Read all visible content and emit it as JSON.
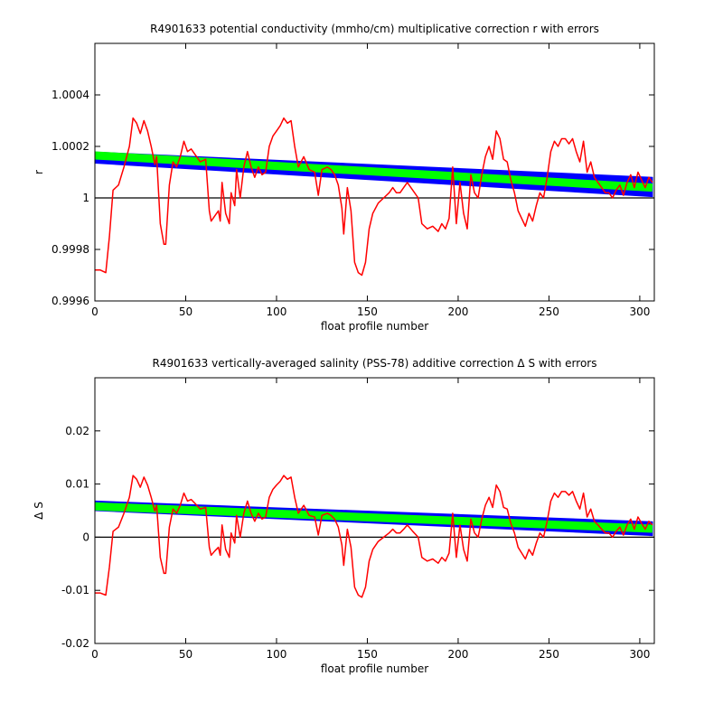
{
  "chart_data": [
    {
      "type": "line",
      "title": "R4901633 potential conductivity (mmho/cm) multiplicative correction r with errors",
      "xlabel": "float profile number",
      "ylabel": "r",
      "xlim": [
        0,
        308
      ],
      "xticks": [
        0,
        50,
        100,
        150,
        200,
        250,
        300
      ],
      "ylim": [
        0.9996,
        1.0006
      ],
      "yticks": [
        0.9996,
        0.9998,
        1,
        1.0002,
        1.0004
      ],
      "hline": 1,
      "hline_color": "#000000",
      "band": {
        "color": "#0000ff",
        "x": [
          0,
          307
        ],
        "upper": [
          1.000178,
          1.00008
        ],
        "lower": [
          1.000135,
          1.000005
        ]
      },
      "fit": {
        "color": "#00ff00",
        "x": [
          0,
          307
        ],
        "values": [
          1.000165,
          1.00004
        ]
      },
      "x": [
        0,
        3,
        6,
        8,
        10,
        13,
        16,
        19,
        21,
        23,
        25,
        27,
        29,
        31,
        33,
        34,
        36,
        38,
        39,
        41,
        43,
        45,
        47,
        49,
        51,
        53,
        55,
        58,
        61,
        63,
        64,
        66,
        68,
        69,
        70,
        72,
        74,
        75,
        77,
        78,
        80,
        82,
        84,
        86,
        88,
        90,
        92,
        94,
        96,
        98,
        100,
        102,
        104,
        106,
        108,
        110,
        112,
        115,
        118,
        121,
        123,
        125,
        128,
        130,
        132,
        134,
        136,
        137,
        139,
        141,
        143,
        145,
        147,
        149,
        151,
        153,
        156,
        159,
        162,
        164,
        166,
        168,
        170,
        172,
        175,
        178,
        180,
        183,
        186,
        189,
        191,
        193,
        195,
        197,
        199,
        201,
        203,
        205,
        207,
        209,
        211,
        213,
        215,
        217,
        219,
        221,
        223,
        225,
        227,
        229,
        231,
        233,
        235,
        237,
        239,
        241,
        243,
        245,
        247,
        249,
        251,
        253,
        255,
        257,
        259,
        261,
        263,
        265,
        267,
        269,
        271,
        273,
        275,
        277,
        279,
        281,
        283,
        285,
        287,
        289,
        291,
        293,
        295,
        297,
        299,
        301,
        303,
        305,
        307
      ],
      "series": [
        {
          "color": "#ff0000",
          "values": [
            0.99972,
            0.99972,
            0.99971,
            0.99985,
            1.00003,
            1.00005,
            1.00012,
            1.0002,
            1.00031,
            1.00029,
            1.00025,
            1.0003,
            1.00026,
            1.0002,
            1.00013,
            1.00016,
            0.9999,
            0.99982,
            0.99982,
            1.00005,
            1.00014,
            1.00012,
            1.00016,
            1.00022,
            1.00018,
            1.00019,
            1.00017,
            1.00014,
            1.00015,
            0.99995,
            0.99991,
            0.99993,
            0.99995,
            0.99991,
            1.00006,
            0.99994,
            0.9999,
            1.00002,
            0.99997,
            1.00011,
            1,
            1.00012,
            1.00018,
            1.00012,
            1.00008,
            1.00012,
            1.00009,
            1.0001,
            1.0002,
            1.00024,
            1.00026,
            1.00028,
            1.00031,
            1.00029,
            1.0003,
            1.0002,
            1.00012,
            1.00016,
            1.00011,
            1.0001,
            1.00001,
            1.00011,
            1.00012,
            1.00011,
            1.00009,
            1.00005,
            0.99996,
            0.99986,
            1.00004,
            0.99995,
            0.99975,
            0.99971,
            0.9997,
            0.99975,
            0.99988,
            0.99994,
            0.99998,
            1,
            1.00002,
            1.00004,
            1.00002,
            1.00002,
            1.00004,
            1.00006,
            1.00003,
            1,
            0.9999,
            0.99988,
            0.99989,
            0.99987,
            0.9999,
            0.99988,
            0.99992,
            1.00012,
            0.9999,
            1.00006,
            0.99994,
            0.99988,
            1.00009,
            1.00002,
            1,
            1.00009,
            1.00016,
            1.0002,
            1.00015,
            1.00026,
            1.00023,
            1.00015,
            1.00014,
            1.00007,
            1.00002,
            0.99995,
            0.99992,
            0.99989,
            0.99994,
            0.99991,
            0.99997,
            1.00002,
            1,
            1.00008,
            1.00018,
            1.00022,
            1.0002,
            1.00023,
            1.00023,
            1.00021,
            1.00023,
            1.00018,
            1.00014,
            1.00022,
            1.0001,
            1.00014,
            1.00008,
            1.00006,
            1.00004,
            1.00002,
            1.00002,
            1,
            1.00003,
            1.00005,
            1.00001,
            1.00006,
            1.00009,
            1.00004,
            1.0001,
            1.00007,
            1.00004,
            1.00008,
            1.00006
          ]
        }
      ]
    },
    {
      "type": "line",
      "title": "R4901633 vertically-averaged salinity (PSS-78) additive correction Δ S with errors",
      "xlabel": "float profile number",
      "ylabel": "Δ S",
      "xlim": [
        0,
        308
      ],
      "xticks": [
        0,
        50,
        100,
        150,
        200,
        250,
        300
      ],
      "ylim": [
        -0.02,
        0.03
      ],
      "yticks": [
        -0.02,
        -0.01,
        0,
        0.01,
        0.02
      ],
      "hline": 0,
      "hline_color": "#000000",
      "band": {
        "color": "#0000ff",
        "x": [
          0,
          307
        ],
        "upper": [
          0.0068,
          0.0029
        ],
        "lower": [
          0.005,
          0.0003
        ]
      },
      "fit": {
        "color": "#00ff00",
        "x": [
          0,
          307
        ],
        "values": [
          0.0058,
          0.0016
        ]
      },
      "x": [
        0,
        3,
        6,
        8,
        10,
        13,
        16,
        19,
        21,
        23,
        25,
        27,
        29,
        31,
        33,
        34,
        36,
        38,
        39,
        41,
        43,
        45,
        47,
        49,
        51,
        53,
        55,
        58,
        61,
        63,
        64,
        66,
        68,
        69,
        70,
        72,
        74,
        75,
        77,
        78,
        80,
        82,
        84,
        86,
        88,
        90,
        92,
        94,
        96,
        98,
        100,
        102,
        104,
        106,
        108,
        110,
        112,
        115,
        118,
        121,
        123,
        125,
        128,
        130,
        132,
        134,
        136,
        137,
        139,
        141,
        143,
        145,
        147,
        149,
        151,
        153,
        156,
        159,
        162,
        164,
        166,
        168,
        170,
        172,
        175,
        178,
        180,
        183,
        186,
        189,
        191,
        193,
        195,
        197,
        199,
        201,
        203,
        205,
        207,
        209,
        211,
        213,
        215,
        217,
        219,
        221,
        223,
        225,
        227,
        229,
        231,
        233,
        235,
        237,
        239,
        241,
        243,
        245,
        247,
        249,
        251,
        253,
        255,
        257,
        259,
        261,
        263,
        265,
        267,
        269,
        271,
        273,
        275,
        277,
        279,
        281,
        283,
        285,
        287,
        289,
        291,
        293,
        295,
        297,
        299,
        301,
        303,
        305,
        307
      ],
      "series": [
        {
          "color": "#ff0000",
          "values": [
            -0.0105,
            -0.0105,
            -0.0109,
            -0.0056,
            0.0011,
            0.0019,
            0.0045,
            0.0075,
            0.0116,
            0.0109,
            0.0094,
            0.0113,
            0.0098,
            0.0075,
            0.0049,
            0.006,
            -0.0038,
            -0.0068,
            -0.0068,
            0.0019,
            0.0053,
            0.0045,
            0.006,
            0.0083,
            0.0068,
            0.0071,
            0.0064,
            0.0053,
            0.0056,
            -0.0019,
            -0.0034,
            -0.0026,
            -0.0019,
            -0.0034,
            0.0023,
            -0.0023,
            -0.0038,
            0.0008,
            -0.0011,
            0.0041,
            0,
            0.0045,
            0.0068,
            0.0045,
            0.003,
            0.0045,
            0.0034,
            0.0038,
            0.0075,
            0.009,
            0.0098,
            0.0105,
            0.0116,
            0.0109,
            0.0113,
            0.0075,
            0.0045,
            0.006,
            0.0041,
            0.0038,
            0.0004,
            0.0041,
            0.0045,
            0.0041,
            0.0034,
            0.0019,
            -0.0015,
            -0.0053,
            0.0015,
            -0.0019,
            -0.0094,
            -0.0109,
            -0.0113,
            -0.0094,
            -0.0045,
            -0.0023,
            -0.0008,
            0,
            0.0008,
            0.0015,
            0.0008,
            0.0008,
            0.0015,
            0.0023,
            0.0011,
            0,
            -0.0038,
            -0.0045,
            -0.0041,
            -0.0049,
            -0.0038,
            -0.0045,
            -0.003,
            0.0045,
            -0.0038,
            0.0023,
            -0.0023,
            -0.0045,
            0.0034,
            0.0008,
            0,
            0.0034,
            0.006,
            0.0075,
            0.0056,
            0.0098,
            0.0086,
            0.0056,
            0.0053,
            0.0026,
            0.0008,
            -0.0019,
            -0.003,
            -0.0041,
            -0.0023,
            -0.0034,
            -0.0011,
            0.0008,
            0,
            0.003,
            0.0068,
            0.0083,
            0.0075,
            0.0086,
            0.0086,
            0.0079,
            0.0086,
            0.0068,
            0.0053,
            0.0083,
            0.0038,
            0.0053,
            0.003,
            0.0023,
            0.0015,
            0.0008,
            0.0008,
            0,
            0.0011,
            0.0019,
            0.0004,
            0.0023,
            0.0034,
            0.0015,
            0.0038,
            0.0026,
            0.0015,
            0.003,
            0.0023
          ]
        }
      ]
    }
  ]
}
